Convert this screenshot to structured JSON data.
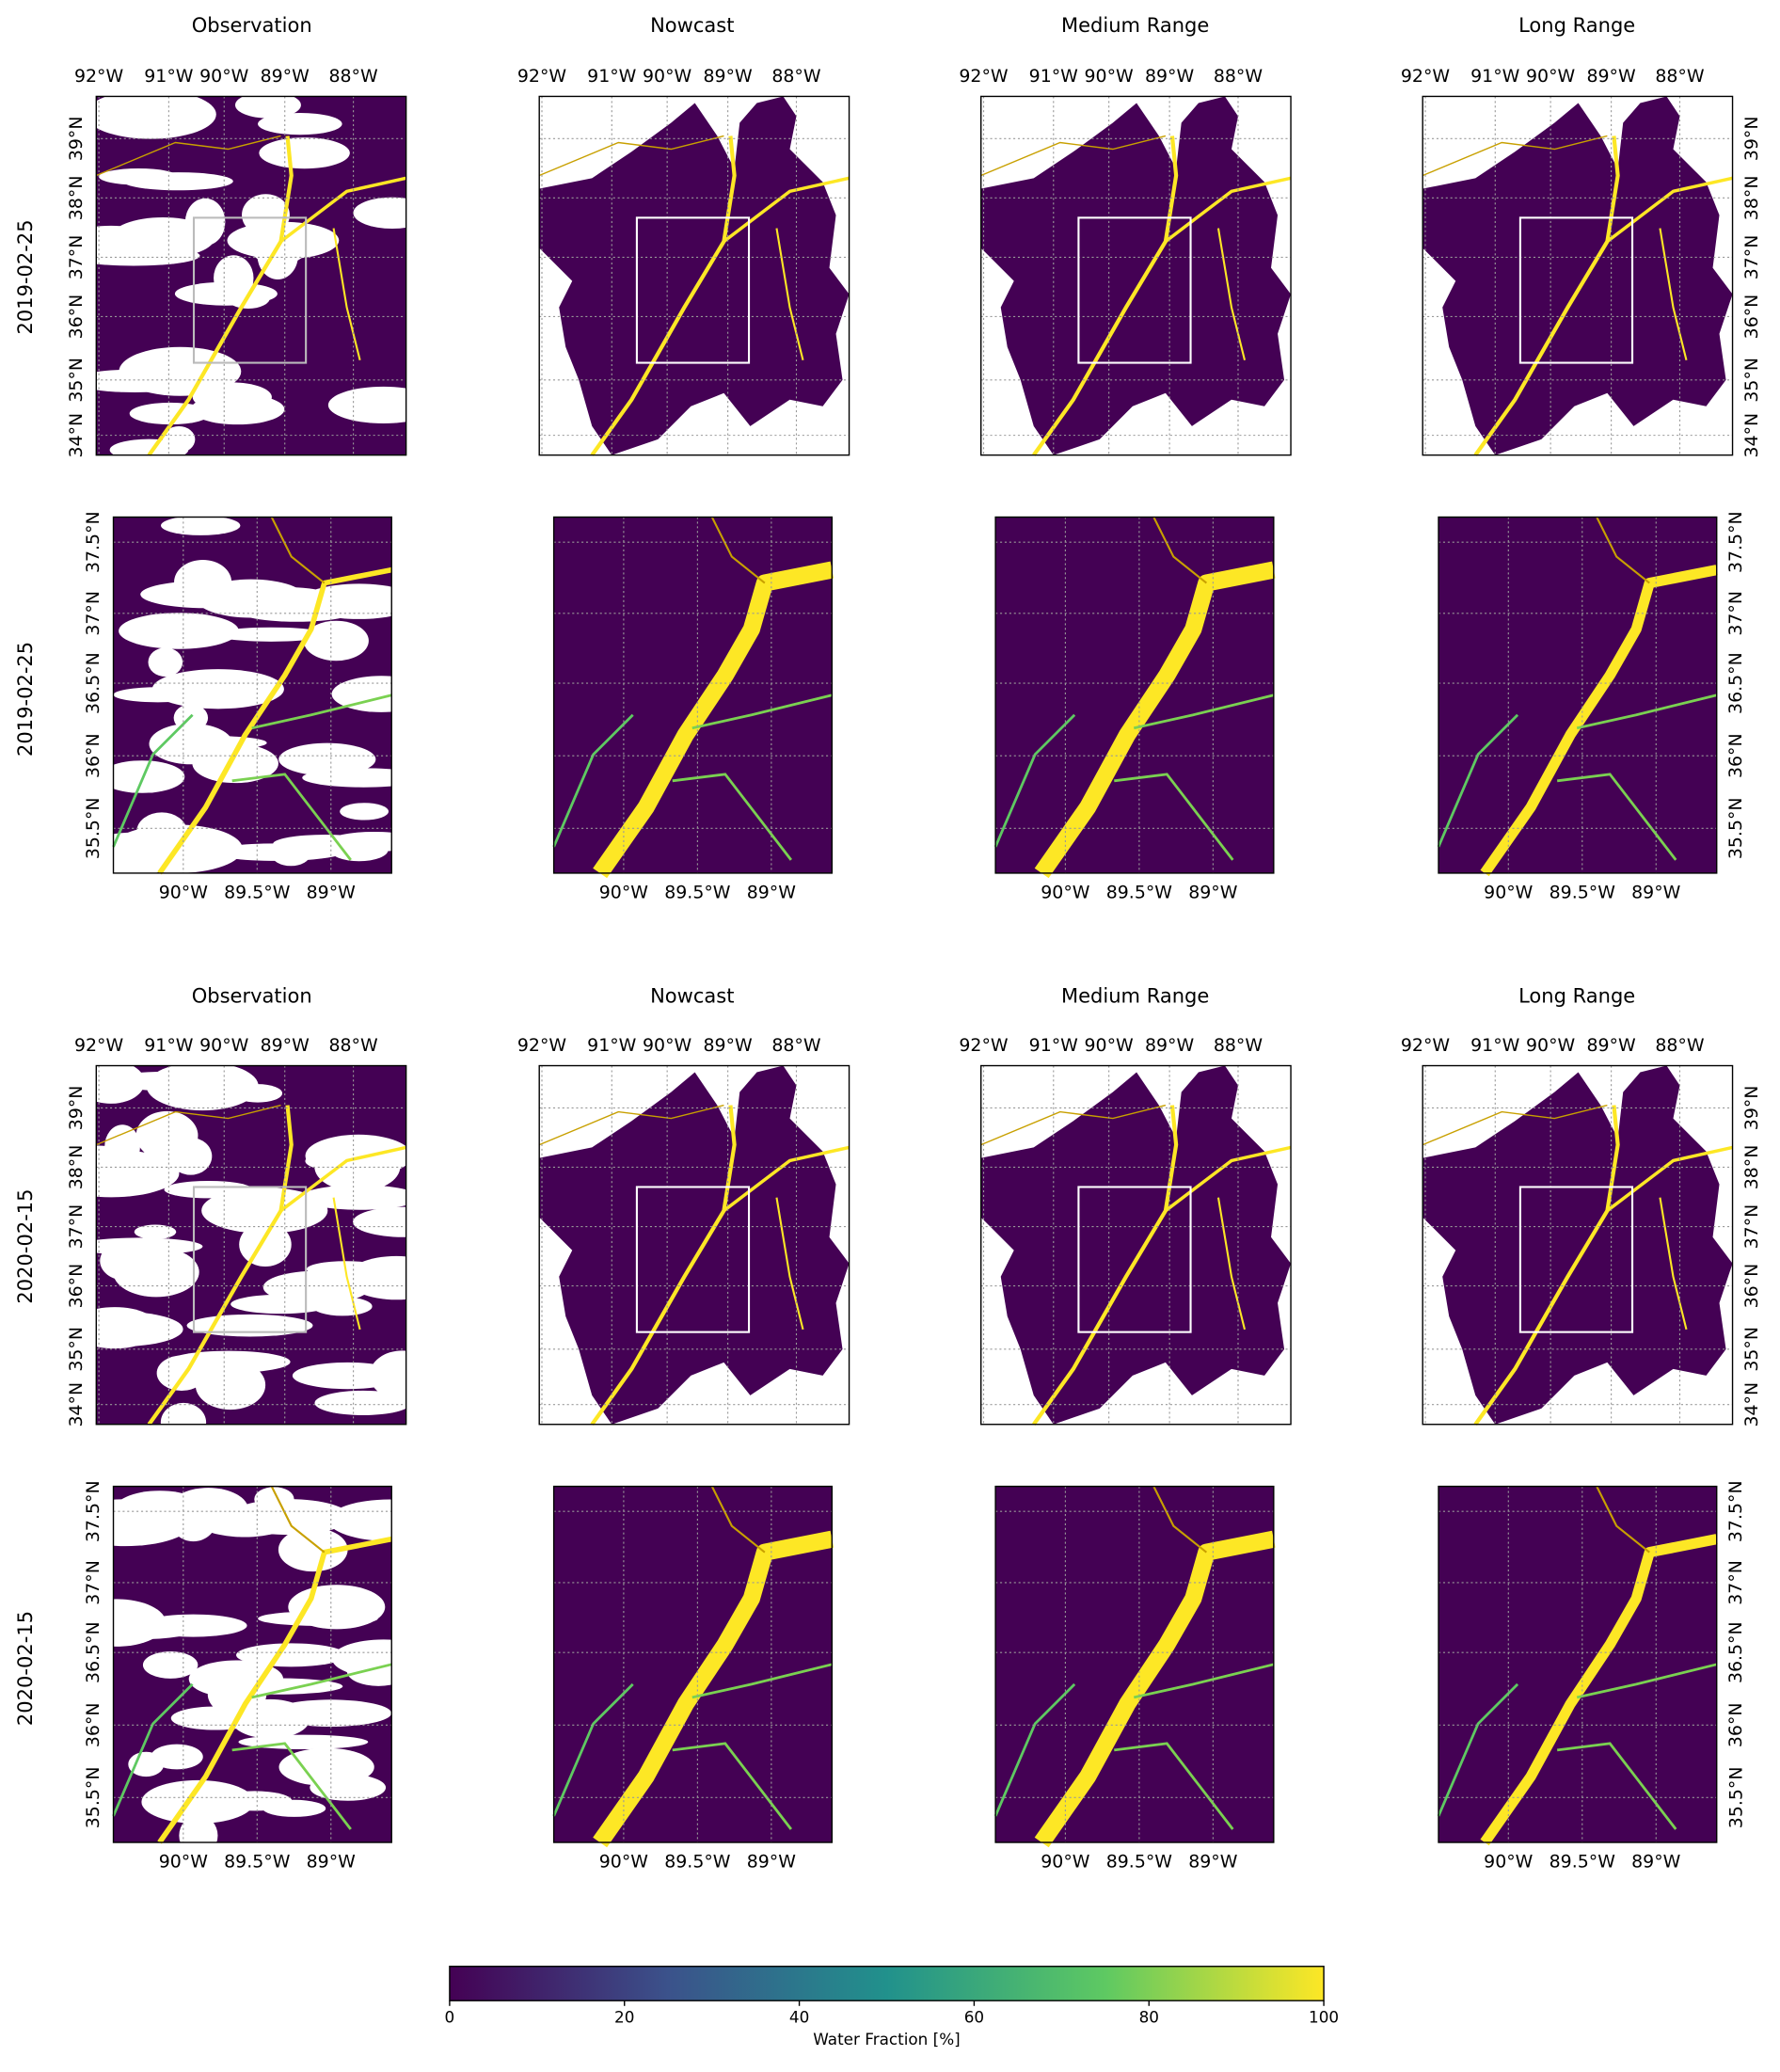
{
  "columns": [
    "Observation",
    "Nowcast",
    "Medium Range",
    "Long Range"
  ],
  "rows": [
    "2019-02-25",
    "2019-02-25",
    "2020-02-15",
    "2020-02-15"
  ],
  "overview_axes": {
    "xticks": [
      "92°W",
      "91°W",
      "90°W",
      "89°W",
      "88°W"
    ],
    "yticks": [
      "39°N",
      "38°N",
      "37°N",
      "36°N",
      "35°N",
      "34°N"
    ]
  },
  "zoom_axes": {
    "xticks": [
      "90°W",
      "89.5°W",
      "89°W"
    ],
    "yticks": [
      "37.5°N",
      "37°N",
      "36.5°N",
      "36°N",
      "35.5°N"
    ]
  },
  "colorbar": {
    "label": "Water Fraction [%]",
    "lim": [
      0,
      100
    ],
    "ticks": [
      0,
      20,
      40,
      60,
      80,
      100
    ]
  }
}
